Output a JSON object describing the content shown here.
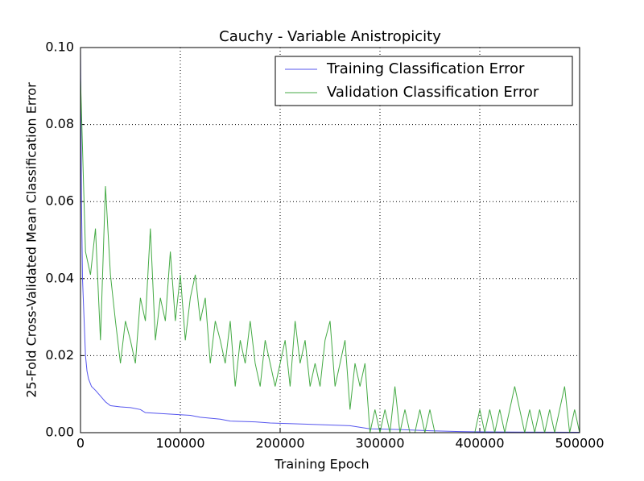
{
  "chart_data": {
    "type": "line",
    "title": "Cauchy - Variable Anistropicity",
    "x_label": "Training Epoch",
    "y_label": "25-Fold Cross-Validated Mean Classification Error",
    "xlim": [
      0,
      500000
    ],
    "ylim": [
      0,
      0.1
    ],
    "xticks": [
      0,
      100000,
      200000,
      300000,
      400000,
      500000
    ],
    "yticks": [
      {
        "value": 0,
        "label": "0.00"
      },
      {
        "value": 0.02,
        "label": "0.02"
      },
      {
        "value": 0.04,
        "label": "0.04"
      },
      {
        "value": 0.06,
        "label": "0.06"
      },
      {
        "value": 0.08,
        "label": "0.08"
      },
      {
        "value": 0.1,
        "label": "0.10"
      }
    ],
    "grid": true,
    "legend": "upper right",
    "series": [
      {
        "name": "Training Classification Error",
        "color": "#5555ee",
        "x": [
          0,
          1000,
          2000,
          3500,
          5000,
          6500,
          8000,
          11000,
          15000,
          20000,
          25000,
          30000,
          40000,
          50000,
          60000,
          65000,
          90000,
          110000,
          120000,
          140000,
          150000,
          175000,
          190000,
          250000,
          270000,
          290000,
          320000,
          350000,
          380000,
          400000,
          500000
        ],
        "values": [
          0.1,
          0.06,
          0.04,
          0.03,
          0.02,
          0.016,
          0.014,
          0.012,
          0.011,
          0.0095,
          0.008,
          0.007,
          0.0067,
          0.0065,
          0.006,
          0.0052,
          0.0048,
          0.0045,
          0.004,
          0.0035,
          0.003,
          0.0028,
          0.0025,
          0.002,
          0.0018,
          0.001,
          0.0008,
          0.0005,
          0.0003,
          0.0002,
          0.0001
        ]
      },
      {
        "name": "Validation Classification Error",
        "color": "#44aa44",
        "x": [
          0,
          5000,
          10000,
          15000,
          20000,
          25000,
          30000,
          35000,
          40000,
          45000,
          50000,
          55000,
          60000,
          65000,
          70000,
          75000,
          80000,
          85000,
          90000,
          95000,
          100000,
          105000,
          110000,
          115000,
          120000,
          125000,
          130000,
          135000,
          140000,
          145000,
          150000,
          155000,
          160000,
          165000,
          170000,
          175000,
          180000,
          185000,
          190000,
          195000,
          200000,
          205000,
          210000,
          215000,
          220000,
          225000,
          230000,
          235000,
          240000,
          245000,
          250000,
          255000,
          260000,
          265000,
          270000,
          275000,
          280000,
          285000,
          290000,
          295000,
          300000,
          305000,
          310000,
          315000,
          320000,
          325000,
          330000,
          335000,
          340000,
          345000,
          350000,
          355000,
          360000,
          365000,
          370000,
          375000,
          380000,
          385000,
          390000,
          395000,
          400000,
          405000,
          410000,
          415000,
          420000,
          425000,
          430000,
          435000,
          440000,
          445000,
          450000,
          455000,
          460000,
          465000,
          470000,
          475000,
          480000,
          485000,
          490000,
          495000,
          500000
        ],
        "values": [
          0.092,
          0.047,
          0.041,
          0.053,
          0.024,
          0.064,
          0.041,
          0.029,
          0.018,
          0.029,
          0.024,
          0.018,
          0.035,
          0.029,
          0.053,
          0.024,
          0.035,
          0.029,
          0.047,
          0.029,
          0.041,
          0.024,
          0.035,
          0.041,
          0.029,
          0.035,
          0.018,
          0.029,
          0.024,
          0.018,
          0.029,
          0.012,
          0.024,
          0.018,
          0.029,
          0.018,
          0.012,
          0.024,
          0.018,
          0.012,
          0.018,
          0.024,
          0.012,
          0.029,
          0.018,
          0.024,
          0.012,
          0.018,
          0.012,
          0.024,
          0.029,
          0.012,
          0.018,
          0.024,
          0.006,
          0.018,
          0.012,
          0.018,
          0,
          0.006,
          0,
          0.006,
          0,
          0.012,
          0,
          0.006,
          0,
          0,
          0.006,
          0,
          0.006,
          0,
          0,
          0,
          0,
          0,
          0,
          0,
          0,
          0,
          0.006,
          0,
          0.006,
          0,
          0.006,
          0,
          0.006,
          0.012,
          0.006,
          0,
          0.006,
          0,
          0.006,
          0,
          0.006,
          0,
          0.006,
          0.012,
          0,
          0.006,
          0
        ]
      }
    ]
  }
}
